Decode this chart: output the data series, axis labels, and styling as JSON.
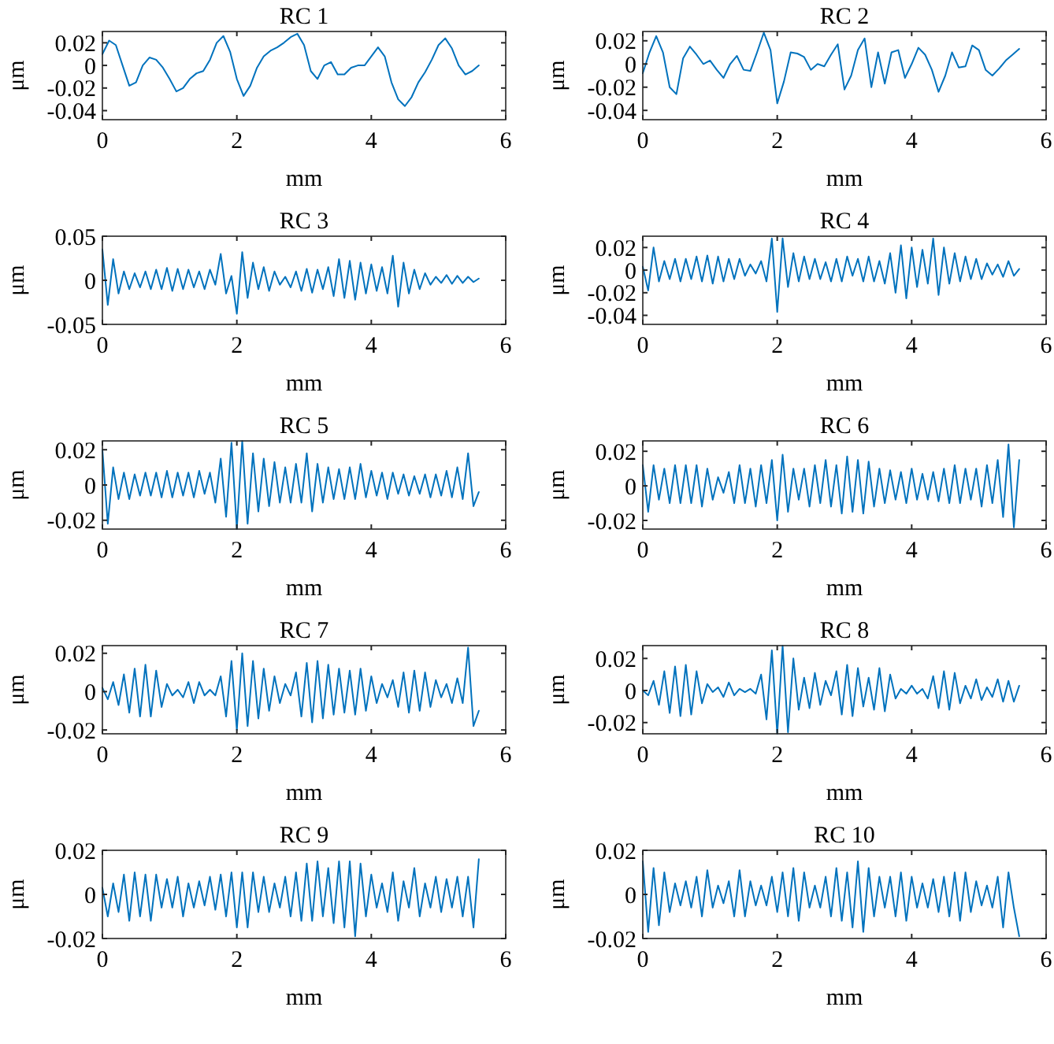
{
  "chart_data": [
    {
      "type": "line",
      "title": "RC 1",
      "xlabel": "mm",
      "ylabel": "μm",
      "xlim": [
        0,
        6
      ],
      "xticks": [
        0,
        2,
        4,
        6
      ],
      "ylim": [
        -0.048,
        0.03
      ],
      "yticks": [
        -0.04,
        -0.02,
        0,
        0.02
      ],
      "series": [
        {
          "color": "#0072bd",
          "x": [
            0,
            0.1,
            0.2,
            0.3,
            0.4,
            0.5,
            0.6,
            0.7,
            0.8,
            0.9,
            1,
            1.1,
            1.2,
            1.3,
            1.4,
            1.5,
            1.6,
            1.7,
            1.8,
            1.9,
            2,
            2.1,
            2.2,
            2.3,
            2.4,
            2.5,
            2.6,
            2.7,
            2.8,
            2.9,
            3,
            3.1,
            3.2,
            3.3,
            3.4,
            3.5,
            3.6,
            3.7,
            3.8,
            3.9,
            4,
            4.1,
            4.2,
            4.3,
            4.4,
            4.5,
            4.6,
            4.7,
            4.8,
            4.9,
            5,
            5.1,
            5.2,
            5.3,
            5.4,
            5.5,
            5.6
          ],
          "values": [
            0.01,
            0.022,
            0.018,
            0.0,
            -0.018,
            -0.015,
            0.0,
            0.007,
            0.005,
            -0.002,
            -0.012,
            -0.023,
            -0.02,
            -0.012,
            -0.007,
            -0.005,
            0.005,
            0.02,
            0.026,
            0.012,
            -0.012,
            -0.027,
            -0.018,
            -0.002,
            0.008,
            0.013,
            0.016,
            0.02,
            0.025,
            0.028,
            0.018,
            -0.005,
            -0.012,
            0.0,
            0.003,
            -0.008,
            -0.008,
            -0.002,
            0.0,
            0.0,
            0.008,
            0.016,
            0.008,
            -0.015,
            -0.03,
            -0.036,
            -0.028,
            -0.015,
            -0.006,
            0.005,
            0.018,
            0.024,
            0.015,
            0.0,
            -0.008,
            -0.005,
            0.0
          ]
        }
      ]
    },
    {
      "type": "line",
      "title": "RC 2",
      "xlabel": "mm",
      "ylabel": "μm",
      "xlim": [
        0,
        6
      ],
      "xticks": [
        0,
        2,
        4,
        6
      ],
      "ylim": [
        -0.048,
        0.028
      ],
      "yticks": [
        -0.04,
        -0.02,
        0,
        0.02
      ],
      "series": [
        {
          "color": "#0072bd",
          "x": [
            0,
            0.1,
            0.2,
            0.3,
            0.4,
            0.5,
            0.6,
            0.7,
            0.8,
            0.9,
            1,
            1.1,
            1.2,
            1.3,
            1.4,
            1.5,
            1.6,
            1.7,
            1.8,
            1.9,
            2,
            2.1,
            2.2,
            2.3,
            2.4,
            2.5,
            2.6,
            2.7,
            2.8,
            2.9,
            3,
            3.1,
            3.2,
            3.3,
            3.4,
            3.5,
            3.6,
            3.7,
            3.8,
            3.9,
            4,
            4.1,
            4.2,
            4.3,
            4.4,
            4.5,
            4.6,
            4.7,
            4.8,
            4.9,
            5,
            5.1,
            5.2,
            5.3,
            5.4,
            5.5,
            5.6
          ],
          "values": [
            -0.008,
            0.01,
            0.024,
            0.01,
            -0.02,
            -0.026,
            0.005,
            0.015,
            0.008,
            0.0,
            0.003,
            -0.005,
            -0.012,
            0.0,
            0.007,
            -0.005,
            -0.006,
            0.01,
            0.027,
            0.012,
            -0.034,
            -0.015,
            0.01,
            0.009,
            0.006,
            -0.005,
            0.0,
            -0.002,
            0.008,
            0.017,
            -0.022,
            -0.01,
            0.012,
            0.022,
            -0.02,
            0.01,
            -0.017,
            0.01,
            0.012,
            -0.012,
            0.0,
            0.014,
            0.008,
            -0.005,
            -0.024,
            -0.01,
            0.01,
            -0.003,
            -0.002,
            0.016,
            0.012,
            -0.005,
            -0.01,
            -0.004,
            0.003,
            0.008,
            0.013
          ]
        }
      ]
    },
    {
      "type": "line",
      "title": "RC 3",
      "xlabel": "mm",
      "ylabel": "μm",
      "xlim": [
        0,
        6
      ],
      "xticks": [
        0,
        2,
        4,
        6
      ],
      "ylim": [
        -0.05,
        0.05
      ],
      "yticks": [
        -0.05,
        0,
        0.05
      ],
      "series": [
        {
          "color": "#0072bd",
          "x": [
            0,
            0.08,
            0.16,
            0.24,
            0.32,
            0.4,
            0.48,
            0.56,
            0.64,
            0.72,
            0.8,
            0.88,
            0.96,
            1.04,
            1.12,
            1.2,
            1.28,
            1.36,
            1.44,
            1.52,
            1.6,
            1.68,
            1.76,
            1.84,
            1.92,
            2,
            2.08,
            2.16,
            2.24,
            2.32,
            2.4,
            2.48,
            2.56,
            2.64,
            2.72,
            2.8,
            2.88,
            2.96,
            3.04,
            3.12,
            3.2,
            3.28,
            3.36,
            3.44,
            3.52,
            3.6,
            3.68,
            3.76,
            3.84,
            3.92,
            4,
            4.08,
            4.16,
            4.24,
            4.32,
            4.4,
            4.48,
            4.56,
            4.64,
            4.72,
            4.8,
            4.88,
            4.96,
            5.04,
            5.12,
            5.2,
            5.28,
            5.36,
            5.44,
            5.52,
            5.6
          ],
          "values": [
            0.035,
            -0.028,
            0.024,
            -0.015,
            0.01,
            -0.01,
            0.008,
            -0.008,
            0.01,
            -0.01,
            0.012,
            -0.01,
            0.014,
            -0.012,
            0.013,
            -0.01,
            0.012,
            -0.008,
            0.01,
            -0.01,
            0.012,
            -0.005,
            0.03,
            -0.015,
            0.005,
            -0.038,
            0.032,
            -0.02,
            0.02,
            -0.01,
            0.015,
            -0.012,
            0.01,
            -0.005,
            0.004,
            -0.008,
            0.01,
            -0.012,
            0.013,
            -0.014,
            0.012,
            -0.01,
            0.015,
            -0.018,
            0.024,
            -0.02,
            0.022,
            -0.022,
            0.02,
            -0.015,
            0.018,
            -0.012,
            0.015,
            -0.015,
            0.028,
            -0.03,
            0.02,
            -0.015,
            0.012,
            -0.01,
            0.008,
            -0.005,
            0.004,
            -0.003,
            0.006,
            -0.004,
            0.005,
            -0.003,
            0.004,
            -0.002,
            0.002
          ]
        }
      ]
    },
    {
      "type": "line",
      "title": "RC 4",
      "xlabel": "mm",
      "ylabel": "μm",
      "xlim": [
        0,
        6
      ],
      "xticks": [
        0,
        2,
        4,
        6
      ],
      "ylim": [
        -0.048,
        0.03
      ],
      "yticks": [
        -0.04,
        -0.02,
        0,
        0.02
      ],
      "series": [
        {
          "color": "#0072bd",
          "x": [
            0,
            0.08,
            0.16,
            0.24,
            0.32,
            0.4,
            0.48,
            0.56,
            0.64,
            0.72,
            0.8,
            0.88,
            0.96,
            1.04,
            1.12,
            1.2,
            1.28,
            1.36,
            1.44,
            1.52,
            1.6,
            1.68,
            1.76,
            1.84,
            1.92,
            2,
            2.08,
            2.16,
            2.24,
            2.32,
            2.4,
            2.48,
            2.56,
            2.64,
            2.72,
            2.8,
            2.88,
            2.96,
            3.04,
            3.12,
            3.2,
            3.28,
            3.36,
            3.44,
            3.52,
            3.6,
            3.68,
            3.76,
            3.84,
            3.92,
            4,
            4.08,
            4.16,
            4.24,
            4.32,
            4.4,
            4.48,
            4.56,
            4.64,
            4.72,
            4.8,
            4.88,
            4.96,
            5.04,
            5.12,
            5.2,
            5.28,
            5.36,
            5.44,
            5.52,
            5.6
          ],
          "values": [
            0.003,
            -0.018,
            0.02,
            -0.01,
            0.008,
            -0.008,
            0.01,
            -0.01,
            0.01,
            -0.008,
            0.012,
            -0.01,
            0.013,
            -0.012,
            0.012,
            -0.01,
            0.01,
            -0.008,
            0.01,
            -0.005,
            0.005,
            -0.003,
            0.008,
            -0.01,
            0.028,
            -0.037,
            0.028,
            -0.015,
            0.015,
            -0.01,
            0.012,
            -0.008,
            0.01,
            -0.008,
            0.007,
            -0.01,
            0.01,
            -0.01,
            0.012,
            -0.005,
            0.01,
            -0.01,
            0.012,
            -0.01,
            0.008,
            -0.012,
            0.015,
            -0.02,
            0.022,
            -0.025,
            0.02,
            -0.015,
            0.018,
            -0.012,
            0.028,
            -0.022,
            0.02,
            -0.012,
            0.015,
            -0.01,
            0.012,
            -0.008,
            0.01,
            -0.008,
            0.006,
            -0.004,
            0.005,
            -0.006,
            0.008,
            -0.005,
            0.001
          ]
        }
      ]
    },
    {
      "type": "line",
      "title": "RC 5",
      "xlabel": "mm",
      "ylabel": "μm",
      "xlim": [
        0,
        6
      ],
      "xticks": [
        0,
        2,
        4,
        6
      ],
      "ylim": [
        -0.025,
        0.025
      ],
      "yticks": [
        -0.02,
        0,
        0.02
      ],
      "series": [
        {
          "color": "#0072bd",
          "x": [
            0,
            0.08,
            0.16,
            0.24,
            0.32,
            0.4,
            0.48,
            0.56,
            0.64,
            0.72,
            0.8,
            0.88,
            0.96,
            1.04,
            1.12,
            1.2,
            1.28,
            1.36,
            1.44,
            1.52,
            1.6,
            1.68,
            1.76,
            1.84,
            1.92,
            2,
            2.08,
            2.16,
            2.24,
            2.32,
            2.4,
            2.48,
            2.56,
            2.64,
            2.72,
            2.8,
            2.88,
            2.96,
            3.04,
            3.12,
            3.2,
            3.28,
            3.36,
            3.44,
            3.52,
            3.6,
            3.68,
            3.76,
            3.84,
            3.92,
            4,
            4.08,
            4.16,
            4.24,
            4.32,
            4.4,
            4.48,
            4.56,
            4.64,
            4.72,
            4.8,
            4.88,
            4.96,
            5.04,
            5.12,
            5.2,
            5.28,
            5.36,
            5.44,
            5.52,
            5.6
          ],
          "values": [
            0.02,
            -0.022,
            0.01,
            -0.008,
            0.007,
            -0.008,
            0.006,
            -0.006,
            0.007,
            -0.006,
            0.007,
            -0.007,
            0.008,
            -0.007,
            0.007,
            -0.006,
            0.007,
            -0.007,
            0.008,
            -0.005,
            0.007,
            -0.01,
            0.015,
            -0.018,
            0.024,
            -0.025,
            0.025,
            -0.022,
            0.018,
            -0.015,
            0.015,
            -0.012,
            0.013,
            -0.01,
            0.01,
            -0.01,
            0.012,
            -0.01,
            0.018,
            -0.015,
            0.012,
            -0.01,
            0.01,
            -0.008,
            0.009,
            -0.008,
            0.01,
            -0.008,
            0.012,
            -0.007,
            0.008,
            -0.006,
            0.007,
            -0.008,
            0.007,
            -0.005,
            0.006,
            -0.006,
            0.005,
            -0.005,
            0.006,
            -0.007,
            0.006,
            -0.006,
            0.008,
            -0.007,
            0.01,
            -0.008,
            0.018,
            -0.012,
            -0.004
          ]
        }
      ]
    },
    {
      "type": "line",
      "title": "RC 6",
      "xlabel": "mm",
      "ylabel": "μm",
      "xlim": [
        0,
        6
      ],
      "xticks": [
        0,
        2,
        4,
        6
      ],
      "ylim": [
        -0.025,
        0.026
      ],
      "yticks": [
        -0.02,
        0,
        0.02
      ],
      "series": [
        {
          "color": "#0072bd",
          "x": [
            0,
            0.08,
            0.16,
            0.24,
            0.32,
            0.4,
            0.48,
            0.56,
            0.64,
            0.72,
            0.8,
            0.88,
            0.96,
            1.04,
            1.12,
            1.2,
            1.28,
            1.36,
            1.44,
            1.52,
            1.6,
            1.68,
            1.76,
            1.84,
            1.92,
            2,
            2.08,
            2.16,
            2.24,
            2.32,
            2.4,
            2.48,
            2.56,
            2.64,
            2.72,
            2.8,
            2.88,
            2.96,
            3.04,
            3.12,
            3.2,
            3.28,
            3.36,
            3.44,
            3.52,
            3.6,
            3.68,
            3.76,
            3.84,
            3.92,
            4,
            4.08,
            4.16,
            4.24,
            4.32,
            4.4,
            4.48,
            4.56,
            4.64,
            4.72,
            4.8,
            4.88,
            4.96,
            5.04,
            5.12,
            5.2,
            5.28,
            5.36,
            5.44,
            5.52,
            5.6
          ],
          "values": [
            0.012,
            -0.015,
            0.012,
            -0.008,
            0.01,
            -0.01,
            0.012,
            -0.01,
            0.012,
            -0.01,
            0.012,
            -0.012,
            0.01,
            -0.008,
            0.005,
            -0.004,
            0.008,
            -0.01,
            0.012,
            -0.01,
            0.01,
            -0.012,
            0.012,
            -0.01,
            0.015,
            -0.02,
            0.018,
            -0.015,
            0.01,
            -0.008,
            0.01,
            -0.012,
            0.012,
            -0.01,
            0.015,
            -0.012,
            0.012,
            -0.016,
            0.017,
            -0.015,
            0.015,
            -0.016,
            0.014,
            -0.012,
            0.01,
            -0.01,
            0.009,
            -0.008,
            0.008,
            -0.01,
            0.01,
            -0.008,
            0.007,
            -0.008,
            0.008,
            -0.009,
            0.01,
            -0.01,
            0.012,
            -0.01,
            0.01,
            -0.008,
            0.01,
            -0.012,
            0.012,
            -0.01,
            0.015,
            -0.018,
            0.024,
            -0.024,
            0.015
          ]
        }
      ]
    },
    {
      "type": "line",
      "title": "RC 7",
      "xlabel": "mm",
      "ylabel": "μm",
      "xlim": [
        0,
        6
      ],
      "xticks": [
        0,
        2,
        4,
        6
      ],
      "ylim": [
        -0.022,
        0.024
      ],
      "yticks": [
        -0.02,
        0,
        0.02
      ],
      "series": [
        {
          "color": "#0072bd",
          "x": [
            0,
            0.08,
            0.16,
            0.24,
            0.32,
            0.4,
            0.48,
            0.56,
            0.64,
            0.72,
            0.8,
            0.88,
            0.96,
            1.04,
            1.12,
            1.2,
            1.28,
            1.36,
            1.44,
            1.52,
            1.6,
            1.68,
            1.76,
            1.84,
            1.92,
            2,
            2.08,
            2.16,
            2.24,
            2.32,
            2.4,
            2.48,
            2.56,
            2.64,
            2.72,
            2.8,
            2.88,
            2.96,
            3.04,
            3.12,
            3.2,
            3.28,
            3.36,
            3.44,
            3.52,
            3.6,
            3.68,
            3.76,
            3.84,
            3.92,
            4,
            4.08,
            4.16,
            4.24,
            4.32,
            4.4,
            4.48,
            4.56,
            4.64,
            4.72,
            4.8,
            4.88,
            4.96,
            5.04,
            5.12,
            5.2,
            5.28,
            5.36,
            5.44,
            5.52,
            5.6
          ],
          "values": [
            0.002,
            -0.004,
            0.005,
            -0.007,
            0.009,
            -0.011,
            0.012,
            -0.013,
            0.014,
            -0.013,
            0.011,
            -0.008,
            0.004,
            -0.002,
            0.001,
            -0.003,
            0.005,
            -0.006,
            0.005,
            -0.002,
            0.001,
            -0.002,
            0.008,
            -0.013,
            0.016,
            -0.02,
            0.02,
            -0.018,
            0.016,
            -0.014,
            0.012,
            -0.01,
            0.008,
            -0.006,
            0.004,
            -0.002,
            0.01,
            -0.013,
            0.015,
            -0.016,
            0.016,
            -0.014,
            0.014,
            -0.012,
            0.012,
            -0.011,
            0.011,
            -0.012,
            0.012,
            -0.01,
            0.008,
            -0.006,
            0.004,
            -0.003,
            0.006,
            -0.008,
            0.01,
            -0.011,
            0.011,
            -0.01,
            0.01,
            -0.008,
            0.006,
            -0.003,
            0.004,
            -0.006,
            0.007,
            -0.006,
            0.023,
            -0.018,
            -0.01
          ]
        }
      ]
    },
    {
      "type": "line",
      "title": "RC 8",
      "xlabel": "mm",
      "ylabel": "μm",
      "xlim": [
        0,
        6
      ],
      "xticks": [
        0,
        2,
        4,
        6
      ],
      "ylim": [
        -0.027,
        0.028
      ],
      "yticks": [
        -0.02,
        0,
        0.02
      ],
      "series": [
        {
          "color": "#0072bd",
          "x": [
            0,
            0.08,
            0.16,
            0.24,
            0.32,
            0.4,
            0.48,
            0.56,
            0.64,
            0.72,
            0.8,
            0.88,
            0.96,
            1.04,
            1.12,
            1.2,
            1.28,
            1.36,
            1.44,
            1.52,
            1.6,
            1.68,
            1.76,
            1.84,
            1.92,
            2,
            2.08,
            2.16,
            2.24,
            2.32,
            2.4,
            2.48,
            2.56,
            2.64,
            2.72,
            2.8,
            2.88,
            2.96,
            3.04,
            3.12,
            3.2,
            3.28,
            3.36,
            3.44,
            3.52,
            3.6,
            3.68,
            3.76,
            3.84,
            3.92,
            4,
            4.08,
            4.16,
            4.24,
            4.32,
            4.4,
            4.48,
            4.56,
            4.64,
            4.72,
            4.8,
            4.88,
            4.96,
            5.04,
            5.12,
            5.2,
            5.28,
            5.36,
            5.44,
            5.52,
            5.6
          ],
          "values": [
            0.0,
            -0.003,
            0.006,
            -0.009,
            0.012,
            -0.014,
            0.015,
            -0.016,
            0.016,
            -0.015,
            0.012,
            -0.008,
            0.004,
            -0.001,
            0.002,
            -0.004,
            0.005,
            -0.003,
            0.001,
            -0.001,
            0.001,
            -0.002,
            0.01,
            -0.018,
            0.025,
            -0.027,
            0.028,
            -0.026,
            0.02,
            -0.012,
            0.008,
            -0.011,
            0.011,
            -0.009,
            0.006,
            -0.003,
            0.012,
            -0.015,
            0.016,
            -0.016,
            0.014,
            -0.01,
            0.008,
            -0.012,
            0.014,
            -0.013,
            0.01,
            -0.005,
            0.001,
            -0.002,
            0.003,
            -0.002,
            0.001,
            -0.005,
            0.009,
            -0.011,
            0.012,
            -0.012,
            0.011,
            -0.008,
            0.003,
            -0.005,
            0.007,
            -0.006,
            0.002,
            -0.004,
            0.007,
            -0.007,
            0.006,
            -0.007,
            0.003
          ]
        }
      ]
    },
    {
      "type": "line",
      "title": "RC 9",
      "xlabel": "mm",
      "ylabel": "μm",
      "xlim": [
        0,
        6
      ],
      "xticks": [
        0,
        2,
        4,
        6
      ],
      "ylim": [
        -0.02,
        0.02
      ],
      "yticks": [
        -0.02,
        0,
        0.02
      ],
      "series": [
        {
          "color": "#0072bd",
          "x": [
            0,
            0.08,
            0.16,
            0.24,
            0.32,
            0.4,
            0.48,
            0.56,
            0.64,
            0.72,
            0.8,
            0.88,
            0.96,
            1.04,
            1.12,
            1.2,
            1.28,
            1.36,
            1.44,
            1.52,
            1.6,
            1.68,
            1.76,
            1.84,
            1.92,
            2,
            2.08,
            2.16,
            2.24,
            2.32,
            2.4,
            2.48,
            2.56,
            2.64,
            2.72,
            2.8,
            2.88,
            2.96,
            3.04,
            3.12,
            3.2,
            3.28,
            3.36,
            3.44,
            3.52,
            3.6,
            3.68,
            3.76,
            3.84,
            3.92,
            4,
            4.08,
            4.16,
            4.24,
            4.32,
            4.4,
            4.48,
            4.56,
            4.64,
            4.72,
            4.8,
            4.88,
            4.96,
            5.04,
            5.12,
            5.2,
            5.28,
            5.36,
            5.44,
            5.52,
            5.6
          ],
          "values": [
            0.003,
            -0.01,
            0.005,
            -0.008,
            0.009,
            -0.012,
            0.01,
            -0.01,
            0.009,
            -0.012,
            0.009,
            -0.006,
            0.007,
            -0.006,
            0.008,
            -0.01,
            0.005,
            -0.006,
            0.006,
            -0.005,
            0.008,
            -0.007,
            0.009,
            -0.01,
            0.01,
            -0.015,
            0.01,
            -0.015,
            0.01,
            -0.008,
            0.008,
            -0.008,
            0.005,
            -0.006,
            0.008,
            -0.01,
            0.01,
            -0.012,
            0.014,
            -0.012,
            0.015,
            -0.01,
            0.012,
            -0.013,
            0.015,
            -0.015,
            0.015,
            -0.019,
            0.014,
            -0.01,
            0.009,
            -0.006,
            0.005,
            -0.008,
            0.01,
            -0.012,
            0.006,
            -0.006,
            0.012,
            -0.01,
            0.005,
            -0.006,
            0.008,
            -0.008,
            0.007,
            -0.006,
            0.008,
            -0.01,
            0.008,
            -0.015,
            0.016
          ]
        }
      ]
    },
    {
      "type": "line",
      "title": "RC 10",
      "xlabel": "mm",
      "ylabel": "μm",
      "xlim": [
        0,
        6
      ],
      "xticks": [
        0,
        2,
        4,
        6
      ],
      "ylim": [
        -0.02,
        0.02
      ],
      "yticks": [
        -0.02,
        0,
        0.02
      ],
      "series": [
        {
          "color": "#0072bd",
          "x": [
            0,
            0.08,
            0.16,
            0.24,
            0.32,
            0.4,
            0.48,
            0.56,
            0.64,
            0.72,
            0.8,
            0.88,
            0.96,
            1.04,
            1.12,
            1.2,
            1.28,
            1.36,
            1.44,
            1.52,
            1.6,
            1.68,
            1.76,
            1.84,
            1.92,
            2,
            2.08,
            2.16,
            2.24,
            2.32,
            2.4,
            2.48,
            2.56,
            2.64,
            2.72,
            2.8,
            2.88,
            2.96,
            3.04,
            3.12,
            3.2,
            3.28,
            3.36,
            3.44,
            3.52,
            3.6,
            3.68,
            3.76,
            3.84,
            3.92,
            4,
            4.08,
            4.16,
            4.24,
            4.32,
            4.4,
            4.48,
            4.56,
            4.64,
            4.72,
            4.8,
            4.88,
            4.96,
            5.04,
            5.12,
            5.2,
            5.28,
            5.36,
            5.44,
            5.52,
            5.6
          ],
          "values": [
            0.015,
            -0.017,
            0.012,
            -0.014,
            0.01,
            -0.008,
            0.005,
            -0.005,
            0.006,
            -0.006,
            0.008,
            -0.01,
            0.011,
            -0.006,
            0.004,
            -0.004,
            0.006,
            -0.01,
            0.011,
            -0.01,
            0.006,
            -0.005,
            0.004,
            -0.005,
            0.008,
            -0.008,
            0.01,
            -0.01,
            0.012,
            -0.012,
            0.01,
            -0.006,
            0.004,
            -0.006,
            0.008,
            -0.01,
            0.012,
            -0.012,
            0.01,
            -0.015,
            0.015,
            -0.017,
            0.012,
            -0.01,
            0.008,
            -0.006,
            0.008,
            -0.01,
            0.01,
            -0.012,
            0.008,
            -0.006,
            0.005,
            -0.006,
            0.007,
            -0.008,
            0.008,
            -0.01,
            0.01,
            -0.012,
            0.01,
            -0.008,
            0.006,
            -0.005,
            0.004,
            -0.006,
            0.008,
            -0.015,
            0.01,
            -0.006,
            -0.019
          ]
        }
      ]
    }
  ]
}
